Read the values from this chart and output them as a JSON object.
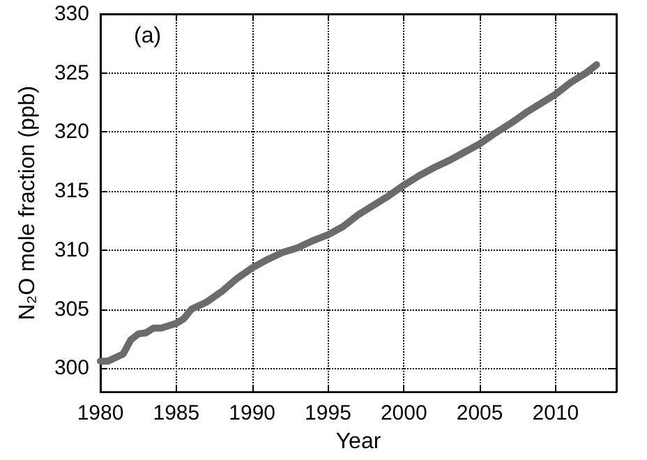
{
  "chart_data": {
    "type": "line",
    "xlabel": "Year",
    "ylabel": "N₂O mole fraction (ppb)",
    "annotations": [
      "(a)"
    ],
    "x": [
      1980,
      1980.5,
      1981,
      1981.5,
      1982,
      1982.5,
      1983,
      1983.5,
      1984,
      1985,
      1985.5,
      1986,
      1987,
      1988,
      1989,
      1990,
      1991,
      1992,
      1993,
      1994,
      1995,
      1996,
      1997,
      1998,
      1999,
      2000,
      2001,
      2002,
      2003,
      2004,
      2005,
      2006,
      2007,
      2008,
      2009,
      2010,
      2011,
      2012,
      2012.7
    ],
    "series": [
      {
        "color": "#6b6b6b",
        "values": [
          300.6,
          300.6,
          300.9,
          301.2,
          302.4,
          302.9,
          303,
          303.4,
          303.4,
          303.8,
          304.2,
          305,
          305.6,
          306.5,
          307.6,
          308.5,
          309.2,
          309.8,
          310.2,
          310.8,
          311.3,
          312,
          313,
          313.8,
          314.6,
          315.5,
          316.3,
          317,
          317.6,
          318.3,
          319,
          319.9,
          320.7,
          321.6,
          322.4,
          323.2,
          324.2,
          325,
          325.7
        ]
      }
    ],
    "xlim": [
      1980,
      2014
    ],
    "xticks": [
      1980,
      1985,
      1990,
      1995,
      2000,
      2005,
      2010
    ],
    "ylim": [
      298,
      330
    ],
    "yticks": [
      300,
      305,
      310,
      315,
      320,
      325,
      330
    ],
    "grid": true,
    "marker": "none",
    "line_style": "solid"
  }
}
